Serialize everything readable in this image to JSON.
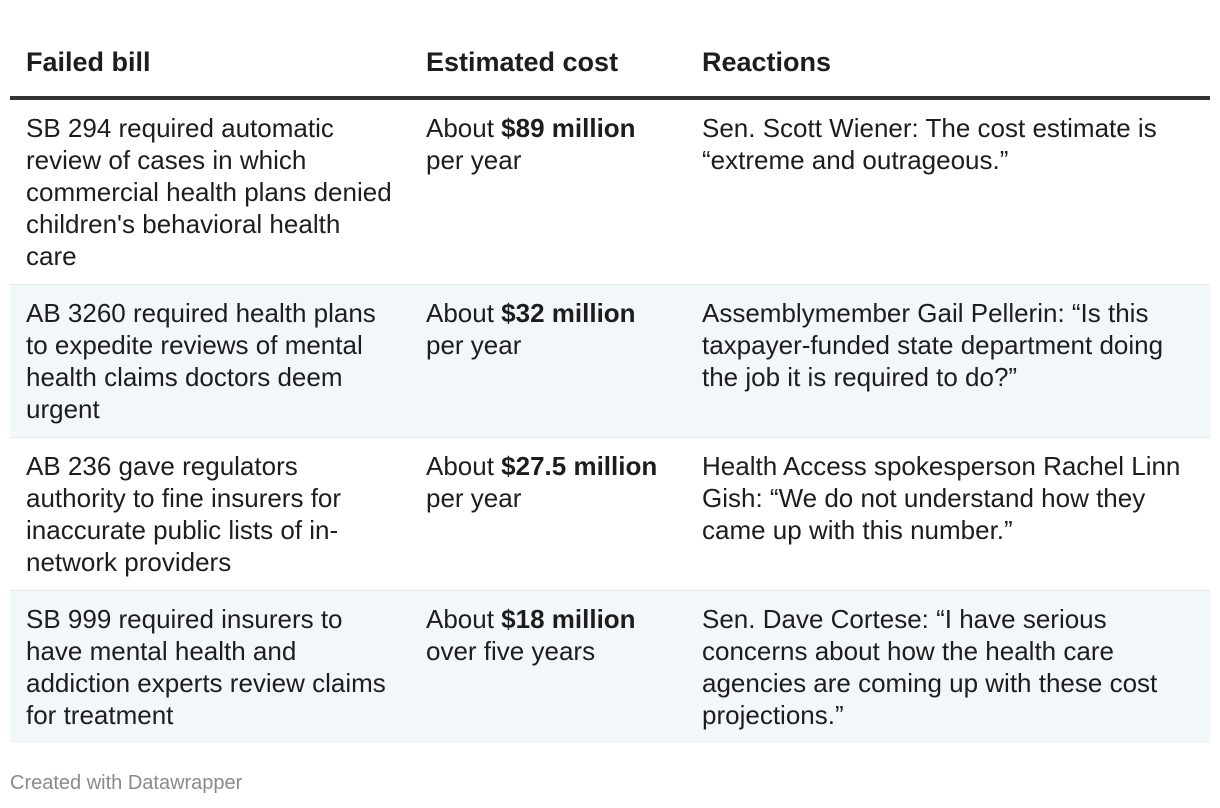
{
  "table": {
    "headers": [
      "Failed bill",
      "Estimated cost",
      "Reactions"
    ],
    "rows": [
      {
        "bill": "SB 294 required automatic review of cases in which commercial health plans denied children's behavioral health care",
        "cost_prefix": "About ",
        "cost_amount": "$89 million",
        "cost_suffix": " per year",
        "reaction": "Sen. Scott Wiener: The cost estimate is “extreme and outrageous.”"
      },
      {
        "bill": "AB 3260 required health plans to expedite reviews of mental health claims doctors deem urgent",
        "cost_prefix": "About ",
        "cost_amount": "$32 million",
        "cost_suffix": " per year",
        "reaction": "Assemblymember Gail Pellerin: “Is this taxpayer-funded state department doing the job it is required to do?”"
      },
      {
        "bill": "AB 236 gave regulators authority to fine insurers for inaccurate public lists of in-network providers",
        "cost_prefix": "About ",
        "cost_amount": "$27.5 million",
        "cost_suffix": " per year",
        "reaction": "Health Access spokesperson Rachel Linn Gish: “We do not understand how they came up with this number.”"
      },
      {
        "bill": "SB 999 required insurers to have mental health and addiction experts review claims for treatment",
        "cost_prefix": "About ",
        "cost_amount": "$18 million",
        "cost_suffix": " over five years",
        "reaction": "Sen. Dave Cortese: “I have serious concerns about how the health care agencies are coming up with these cost projections.”"
      }
    ]
  },
  "footer": {
    "credit": "Created with Datawrapper"
  },
  "colors": {
    "text": "#1d1d1d",
    "header_rule": "#333333",
    "stripe": "#f2f7fa",
    "footer_text": "#8a8a8a"
  }
}
